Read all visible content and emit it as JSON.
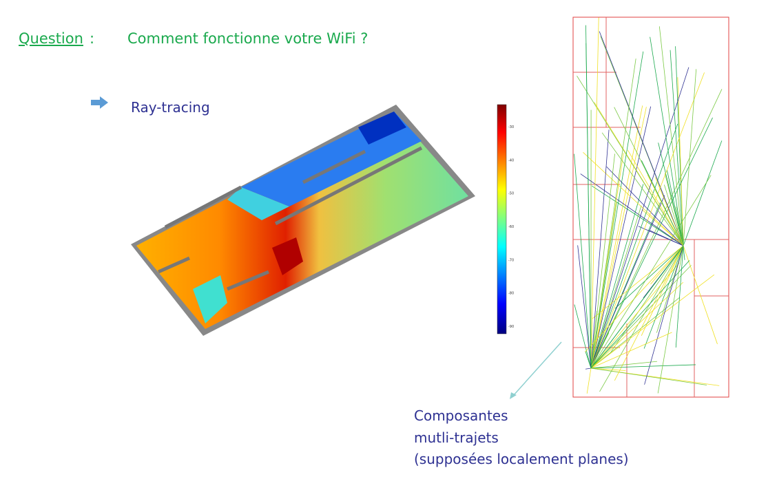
{
  "header": {
    "label": "Question",
    "separator": ":",
    "title": "Comment fonctionne votre WiFi ?"
  },
  "bullet": "Ray-tracing",
  "colorbar": {
    "labels": [
      "-30",
      "-40",
      "-50",
      "-60",
      "-70",
      "-80",
      "-90"
    ]
  },
  "caption": [
    "Composantes",
    "mutli-trajets",
    "(supposées localement planes)"
  ]
}
